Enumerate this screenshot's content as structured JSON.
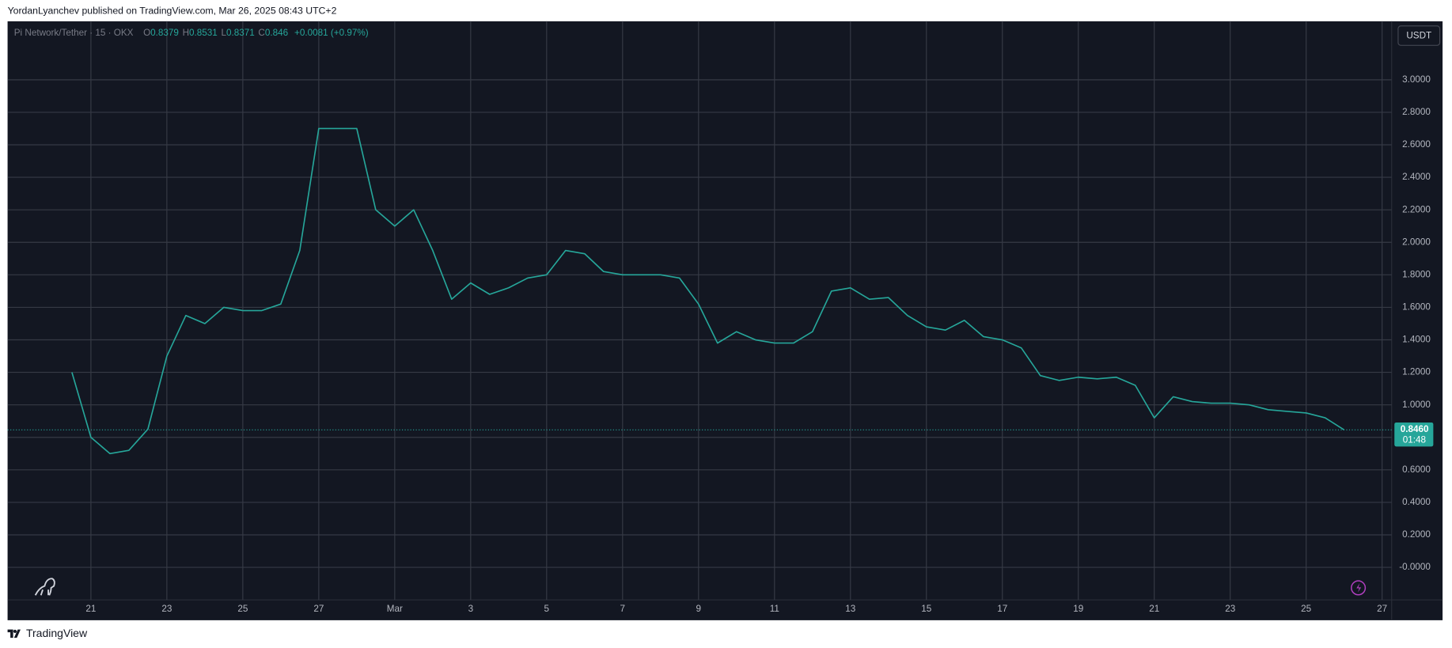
{
  "header": "YordanLyanchev published on TradingView.com, Mar 26, 2025 08:43 UTC+2",
  "symbol": "Pi Network/Tether · 15 · OKX",
  "ohlc": [
    {
      "key": "O",
      "value": 0.8379
    },
    {
      "key": "H",
      "value": 0.8531
    },
    {
      "key": "L",
      "value": 0.8371
    },
    {
      "key": "C",
      "value": 0.846
    }
  ],
  "change": "+0.0081 (+0.97%)",
  "currency": "USDT",
  "last_price": {
    "value": 0.846,
    "label": "0.8460"
  },
  "countdown": "01:48",
  "footer": "TradingView",
  "chart_data": {
    "type": "line",
    "color": "#26a69a",
    "grid": true,
    "categories": [
      null,
      "21",
      null,
      null,
      null,
      "23",
      null,
      null,
      null,
      "25",
      null,
      null,
      null,
      "27",
      null,
      null,
      null,
      "Mar",
      null,
      null,
      null,
      "3",
      null,
      null,
      null,
      "5",
      null,
      null,
      null,
      "7",
      null,
      null,
      null,
      "9",
      null,
      null,
      null,
      "11",
      null,
      null,
      null,
      "13",
      null,
      null,
      null,
      "15",
      null,
      null,
      null,
      "17",
      null,
      null,
      null,
      "19",
      null,
      null,
      null,
      "21",
      null,
      null,
      null,
      "23",
      null,
      null,
      null,
      "25",
      null,
      null,
      null,
      "27"
    ],
    "values": [
      1.2,
      0.8,
      0.7,
      0.72,
      0.85,
      1.3,
      1.55,
      1.5,
      1.6,
      1.58,
      1.58,
      1.62,
      1.95,
      2.7,
      2.7,
      2.7,
      2.2,
      2.1,
      2.2,
      1.95,
      1.65,
      1.75,
      1.68,
      1.72,
      1.78,
      1.8,
      1.95,
      1.93,
      1.82,
      1.8,
      1.8,
      1.8,
      1.78,
      1.62,
      1.38,
      1.45,
      1.4,
      1.38,
      1.38,
      1.45,
      1.7,
      1.72,
      1.65,
      1.66,
      1.55,
      1.48,
      1.46,
      1.52,
      1.42,
      1.4,
      1.35,
      1.18,
      1.15,
      1.17,
      1.16,
      1.17,
      1.12,
      0.92,
      1.05,
      1.02,
      1.01,
      1.01,
      1.0,
      0.97,
      0.96,
      0.95,
      0.92,
      0.846,
      null,
      null
    ],
    "ylim": [
      -0.2,
      3.36
    ],
    "yticks": [
      {
        "value": 0,
        "label": "-0.0000"
      },
      {
        "value": 0.2,
        "label": "0.2000"
      },
      {
        "value": 0.4,
        "label": "0.4000"
      },
      {
        "value": 0.6,
        "label": "0.6000"
      },
      {
        "value": 0.8,
        "label": "0.8000"
      },
      {
        "value": 1.0,
        "label": "1.0000"
      },
      {
        "value": 1.2,
        "label": "1.2000"
      },
      {
        "value": 1.4,
        "label": "1.4000"
      },
      {
        "value": 1.6,
        "label": "1.6000"
      },
      {
        "value": 1.8,
        "label": "1.8000"
      },
      {
        "value": 2.0,
        "label": "2.0000"
      },
      {
        "value": 2.2,
        "label": "2.2000"
      },
      {
        "value": 2.4,
        "label": "2.4000"
      },
      {
        "value": 2.6,
        "label": "2.6000"
      },
      {
        "value": 2.8,
        "label": "2.8000"
      },
      {
        "value": 3.0,
        "label": "3.0000"
      }
    ]
  }
}
